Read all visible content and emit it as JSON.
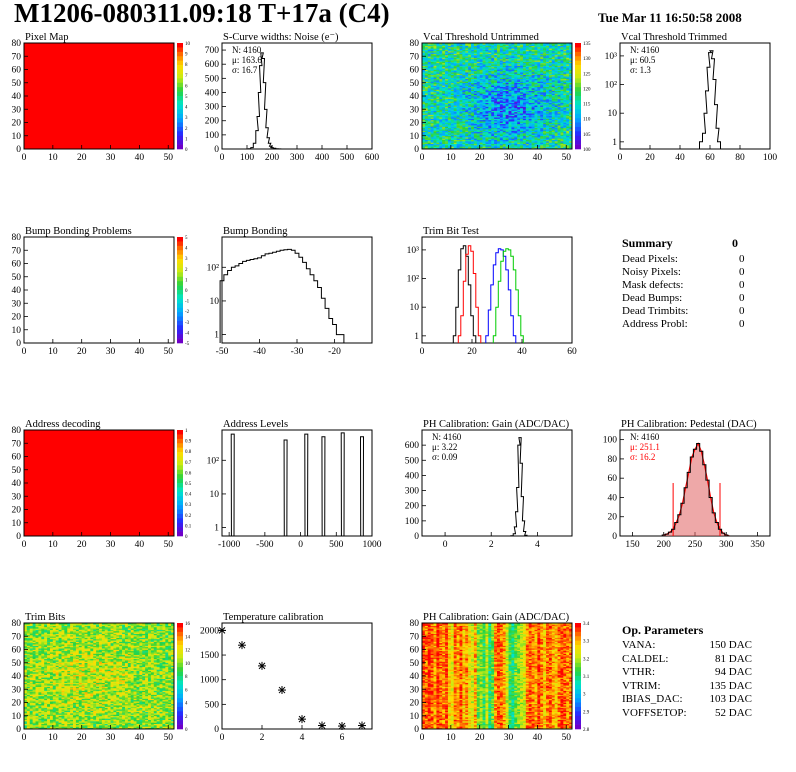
{
  "header": {
    "title": "M1206-080311.09:18 T+17a (C4)",
    "date": "Tue Mar 11 16:50:58 2008"
  },
  "colors": {
    "red": "#ff0000",
    "hist_line": "#000000",
    "trim_red": "#ff0000",
    "trim_blue": "#0000ff",
    "trim_green": "#00cc00",
    "pedestal_fill": "#e06060"
  },
  "chart_data": [
    {
      "id": "pixel-map",
      "type": "heatmap",
      "title": "Pixel Map",
      "xlim": [
        0,
        52
      ],
      "ylim": [
        0,
        80
      ],
      "xticks": [
        0,
        10,
        20,
        30,
        40,
        50
      ],
      "yticks": [
        0,
        10,
        20,
        30,
        40,
        50,
        60,
        70,
        80
      ],
      "fill": "uniform-red",
      "zticks": [
        "10",
        "9",
        "8",
        "7",
        "6",
        "5",
        "4",
        "3",
        "2",
        "1",
        "0"
      ]
    },
    {
      "id": "scurve-noise",
      "type": "histogram",
      "title": "S-Curve widths: Noise (e⁻)",
      "xlim": [
        0,
        600
      ],
      "ylim": [
        0,
        750
      ],
      "xticks": [
        0,
        100,
        200,
        300,
        400,
        500,
        600
      ],
      "yticks": [
        0,
        100,
        200,
        300,
        400,
        500,
        600,
        700
      ],
      "stats": [
        "N: 4160",
        "μ: 163.6",
        "σ: 16.7"
      ],
      "x": [
        100,
        110,
        120,
        130,
        140,
        145,
        150,
        155,
        160,
        165,
        170,
        175,
        180,
        185,
        190,
        195,
        200,
        210,
        220,
        230,
        240,
        250
      ],
      "y": [
        0,
        2,
        10,
        40,
        130,
        230,
        400,
        590,
        680,
        640,
        470,
        280,
        150,
        80,
        40,
        20,
        10,
        5,
        2,
        1,
        0,
        0
      ]
    },
    {
      "id": "vcal-untrimmed",
      "type": "heatmap",
      "title": "Vcal Threshold Untrimmed",
      "xlim": [
        0,
        52
      ],
      "ylim": [
        0,
        80
      ],
      "xticks": [
        0,
        10,
        20,
        30,
        40,
        50
      ],
      "yticks": [
        0,
        10,
        20,
        30,
        40,
        50,
        60,
        70,
        80
      ],
      "zticks": [
        "135",
        "130",
        "125",
        "120",
        "115",
        "110",
        "105",
        "100"
      ],
      "fill": "noise-cyan-green-blue"
    },
    {
      "id": "vcal-trimmed",
      "type": "histogram",
      "title": "Vcal Threshold Trimmed",
      "logy": true,
      "xlim": [
        0,
        100
      ],
      "xticks": [
        0,
        20,
        40,
        60,
        80,
        100
      ],
      "yticks": [
        "1",
        "10",
        "10²",
        "10³"
      ],
      "stats": [
        "N: 4160",
        "μ: 60.5",
        "σ: 1.3"
      ],
      "x": [
        54,
        56,
        57,
        58,
        59,
        60,
        61,
        62,
        63,
        64,
        65,
        66
      ],
      "y": [
        1,
        2,
        10,
        60,
        400,
        1300,
        1500,
        800,
        150,
        20,
        3,
        1
      ]
    },
    {
      "id": "bump-bonding-problems",
      "type": "heatmap",
      "title": "Bump Bonding Problems",
      "xlim": [
        0,
        52
      ],
      "ylim": [
        0,
        80
      ],
      "xticks": [
        0,
        10,
        20,
        30,
        40,
        50
      ],
      "yticks": [
        0,
        10,
        20,
        30,
        40,
        50,
        60,
        70,
        80
      ],
      "zticks": [
        "5",
        "4",
        "3",
        "2",
        "1",
        "0",
        "-1",
        "-2",
        "-3",
        "-4",
        "-5"
      ],
      "fill": "empty"
    },
    {
      "id": "bump-bonding",
      "type": "histogram",
      "title": "Bump Bonding",
      "logy": true,
      "xlim": [
        -50,
        -10
      ],
      "xticks": [
        -50,
        -40,
        -30,
        -20
      ],
      "yticks": [
        "1",
        "10",
        "10²"
      ],
      "x": [
        -50,
        -49,
        -48,
        -47,
        -46,
        -45,
        -44,
        -43,
        -42,
        -41,
        -40,
        -39,
        -38,
        -37,
        -36,
        -35,
        -34,
        -33,
        -32,
        -31,
        -30,
        -29,
        -28,
        -27,
        -26,
        -25,
        -24,
        -23,
        -22,
        -21,
        -20,
        -19,
        -18
      ],
      "y": [
        40,
        60,
        80,
        100,
        110,
        130,
        150,
        160,
        170,
        180,
        190,
        220,
        250,
        260,
        280,
        300,
        320,
        330,
        340,
        320,
        260,
        200,
        140,
        90,
        60,
        40,
        25,
        12,
        6,
        3,
        2,
        1,
        1
      ]
    },
    {
      "id": "trim-bit-test",
      "type": "histogram",
      "title": "Trim Bit Test",
      "logy": true,
      "xlim": [
        0,
        60
      ],
      "xticks": [
        0,
        20,
        40,
        60
      ],
      "yticks": [
        "1",
        "10",
        "10²",
        "10³"
      ],
      "series": [
        {
          "color": "#000000",
          "x": [
            13,
            14,
            15,
            16,
            17,
            18,
            19,
            20,
            21
          ],
          "y": [
            1,
            10,
            200,
            1100,
            1400,
            600,
            60,
            5,
            1
          ]
        },
        {
          "color": "#ff0000",
          "x": [
            15,
            16,
            17,
            18,
            19,
            20,
            21,
            22,
            23
          ],
          "y": [
            1,
            5,
            80,
            700,
            1400,
            900,
            150,
            10,
            1
          ]
        },
        {
          "color": "#0000ff",
          "x": [
            26,
            27,
            28,
            29,
            30,
            31,
            32,
            33,
            34,
            35,
            36,
            37
          ],
          "y": [
            1,
            8,
            60,
            300,
            800,
            1100,
            1000,
            600,
            200,
            40,
            5,
            1
          ]
        },
        {
          "color": "#00cc00",
          "x": [
            29,
            30,
            31,
            32,
            33,
            34,
            35,
            36,
            37,
            38,
            39,
            40
          ],
          "y": [
            1,
            10,
            80,
            400,
            900,
            1100,
            1000,
            600,
            200,
            40,
            5,
            1
          ]
        }
      ]
    },
    {
      "id": "address-decoding",
      "type": "heatmap",
      "title": "Address decoding",
      "xlim": [
        0,
        52
      ],
      "ylim": [
        0,
        80
      ],
      "xticks": [
        0,
        10,
        20,
        30,
        40,
        50
      ],
      "yticks": [
        0,
        10,
        20,
        30,
        40,
        50,
        60,
        70,
        80
      ],
      "zticks": [
        "1",
        "0.9",
        "0.8",
        "0.7",
        "0.6",
        "0.5",
        "0.4",
        "0.3",
        "0.2",
        "0.1",
        "0"
      ],
      "fill": "uniform-red"
    },
    {
      "id": "address-levels",
      "type": "histogram",
      "title": "Address Levels",
      "logy": true,
      "xlim": [
        -1100,
        1000
      ],
      "xticks": [
        -1000,
        -500,
        0,
        500,
        1000
      ],
      "yticks": [
        "1",
        "10",
        "10²"
      ],
      "peaks": [
        {
          "x": -950,
          "y": 600
        },
        {
          "x": -210,
          "y": 400
        },
        {
          "x": 80,
          "y": 600
        },
        {
          "x": 320,
          "y": 500
        },
        {
          "x": 590,
          "y": 650
        },
        {
          "x": 860,
          "y": 500
        }
      ]
    },
    {
      "id": "ph-gain",
      "type": "histogram",
      "title": "PH Calibration: Gain (ADC/DAC)",
      "xlim": [
        -1,
        5.5
      ],
      "ylim": [
        0,
        700
      ],
      "xticks": [
        0,
        2,
        4
      ],
      "yticks": [
        0,
        100,
        200,
        300,
        400,
        500,
        600
      ],
      "stats": [
        "N: 4160",
        "μ: 3.22",
        "σ: 0.09"
      ],
      "x": [
        2.8,
        2.9,
        3.0,
        3.05,
        3.1,
        3.15,
        3.2,
        3.25,
        3.3,
        3.35,
        3.4,
        3.45,
        3.5,
        3.6
      ],
      "y": [
        0,
        2,
        15,
        60,
        160,
        320,
        600,
        650,
        480,
        260,
        100,
        30,
        5,
        0
      ]
    },
    {
      "id": "ph-pedestal",
      "type": "histogram",
      "title": "PH Calibration: Pedestal (DAC)",
      "xlim": [
        130,
        370
      ],
      "ylim": [
        0,
        110
      ],
      "xticks": [
        150,
        200,
        250,
        300,
        350
      ],
      "yticks": [
        0,
        20,
        40,
        60,
        80,
        100
      ],
      "stats": [
        {
          "text": "N: 4160",
          "color": "#000000"
        },
        {
          "text": "μ: 251.1",
          "color": "#ff0000"
        },
        {
          "text": "σ: 16.2",
          "color": "#ff0000"
        }
      ],
      "x": [
        200,
        205,
        210,
        215,
        220,
        225,
        230,
        235,
        240,
        245,
        250,
        255,
        260,
        265,
        270,
        275,
        280,
        285,
        290,
        295,
        300,
        305
      ],
      "y": [
        1,
        2,
        4,
        7,
        14,
        22,
        34,
        50,
        66,
        82,
        90,
        96,
        88,
        74,
        58,
        40,
        24,
        14,
        7,
        3,
        1,
        0
      ],
      "markers": [
        215,
        290
      ]
    },
    {
      "id": "trim-bits",
      "type": "heatmap",
      "title": "Trim Bits",
      "xlim": [
        0,
        52
      ],
      "ylim": [
        0,
        80
      ],
      "xticks": [
        0,
        10,
        20,
        30,
        40,
        50
      ],
      "yticks": [
        0,
        10,
        20,
        30,
        40,
        50,
        60,
        70,
        80
      ],
      "zticks": [
        "16",
        "14",
        "12",
        "10",
        "8",
        "6",
        "4",
        "2",
        "0"
      ],
      "fill": "noise-green-yellow"
    },
    {
      "id": "temperature-calibration",
      "type": "scatter",
      "title": "Temperature calibration",
      "xlim": [
        0,
        7.5
      ],
      "ylim": [
        0,
        2150
      ],
      "xticks": [
        0,
        2,
        4,
        6
      ],
      "yticks": [
        0,
        500,
        1000,
        1500,
        2000
      ],
      "x": [
        0,
        1,
        2,
        3,
        4,
        5,
        6,
        7
      ],
      "y": [
        2000,
        1700,
        1280,
        790,
        200,
        70,
        60,
        70
      ]
    },
    {
      "id": "ph-gain-map",
      "type": "heatmap",
      "title": "PH Calibration: Gain (ADC/DAC)",
      "xlim": [
        0,
        52
      ],
      "ylim": [
        0,
        80
      ],
      "xticks": [
        0,
        10,
        20,
        30,
        40,
        50
      ],
      "yticks": [
        0,
        10,
        20,
        30,
        40,
        50,
        60,
        70,
        80
      ],
      "zticks": [
        "3.4",
        "3.3",
        "3.2",
        "3.1",
        "3",
        "2.9",
        "2.8"
      ],
      "fill": "column-bands"
    }
  ],
  "summary": {
    "title": "Summary",
    "total": "0",
    "rows": [
      {
        "label": "Dead Pixels:",
        "value": "0"
      },
      {
        "label": "Noisy Pixels:",
        "value": "0"
      },
      {
        "label": "Mask defects:",
        "value": "0"
      },
      {
        "label": "Dead Bumps:",
        "value": "0"
      },
      {
        "label": "Dead Trimbits:",
        "value": "0"
      },
      {
        "label": "Address Probl:",
        "value": "0"
      }
    ]
  },
  "op_params": {
    "title": "Op. Parameters",
    "rows": [
      {
        "label": "VANA:",
        "value": "150 DAC"
      },
      {
        "label": "CALDEL:",
        "value": "81 DAC"
      },
      {
        "label": "VTHR:",
        "value": "94 DAC"
      },
      {
        "label": "VTRIM:",
        "value": "135 DAC"
      },
      {
        "label": "IBIAS_DAC:",
        "value": "103 DAC"
      },
      {
        "label": "VOFFSETOP:",
        "value": "52 DAC"
      }
    ]
  }
}
